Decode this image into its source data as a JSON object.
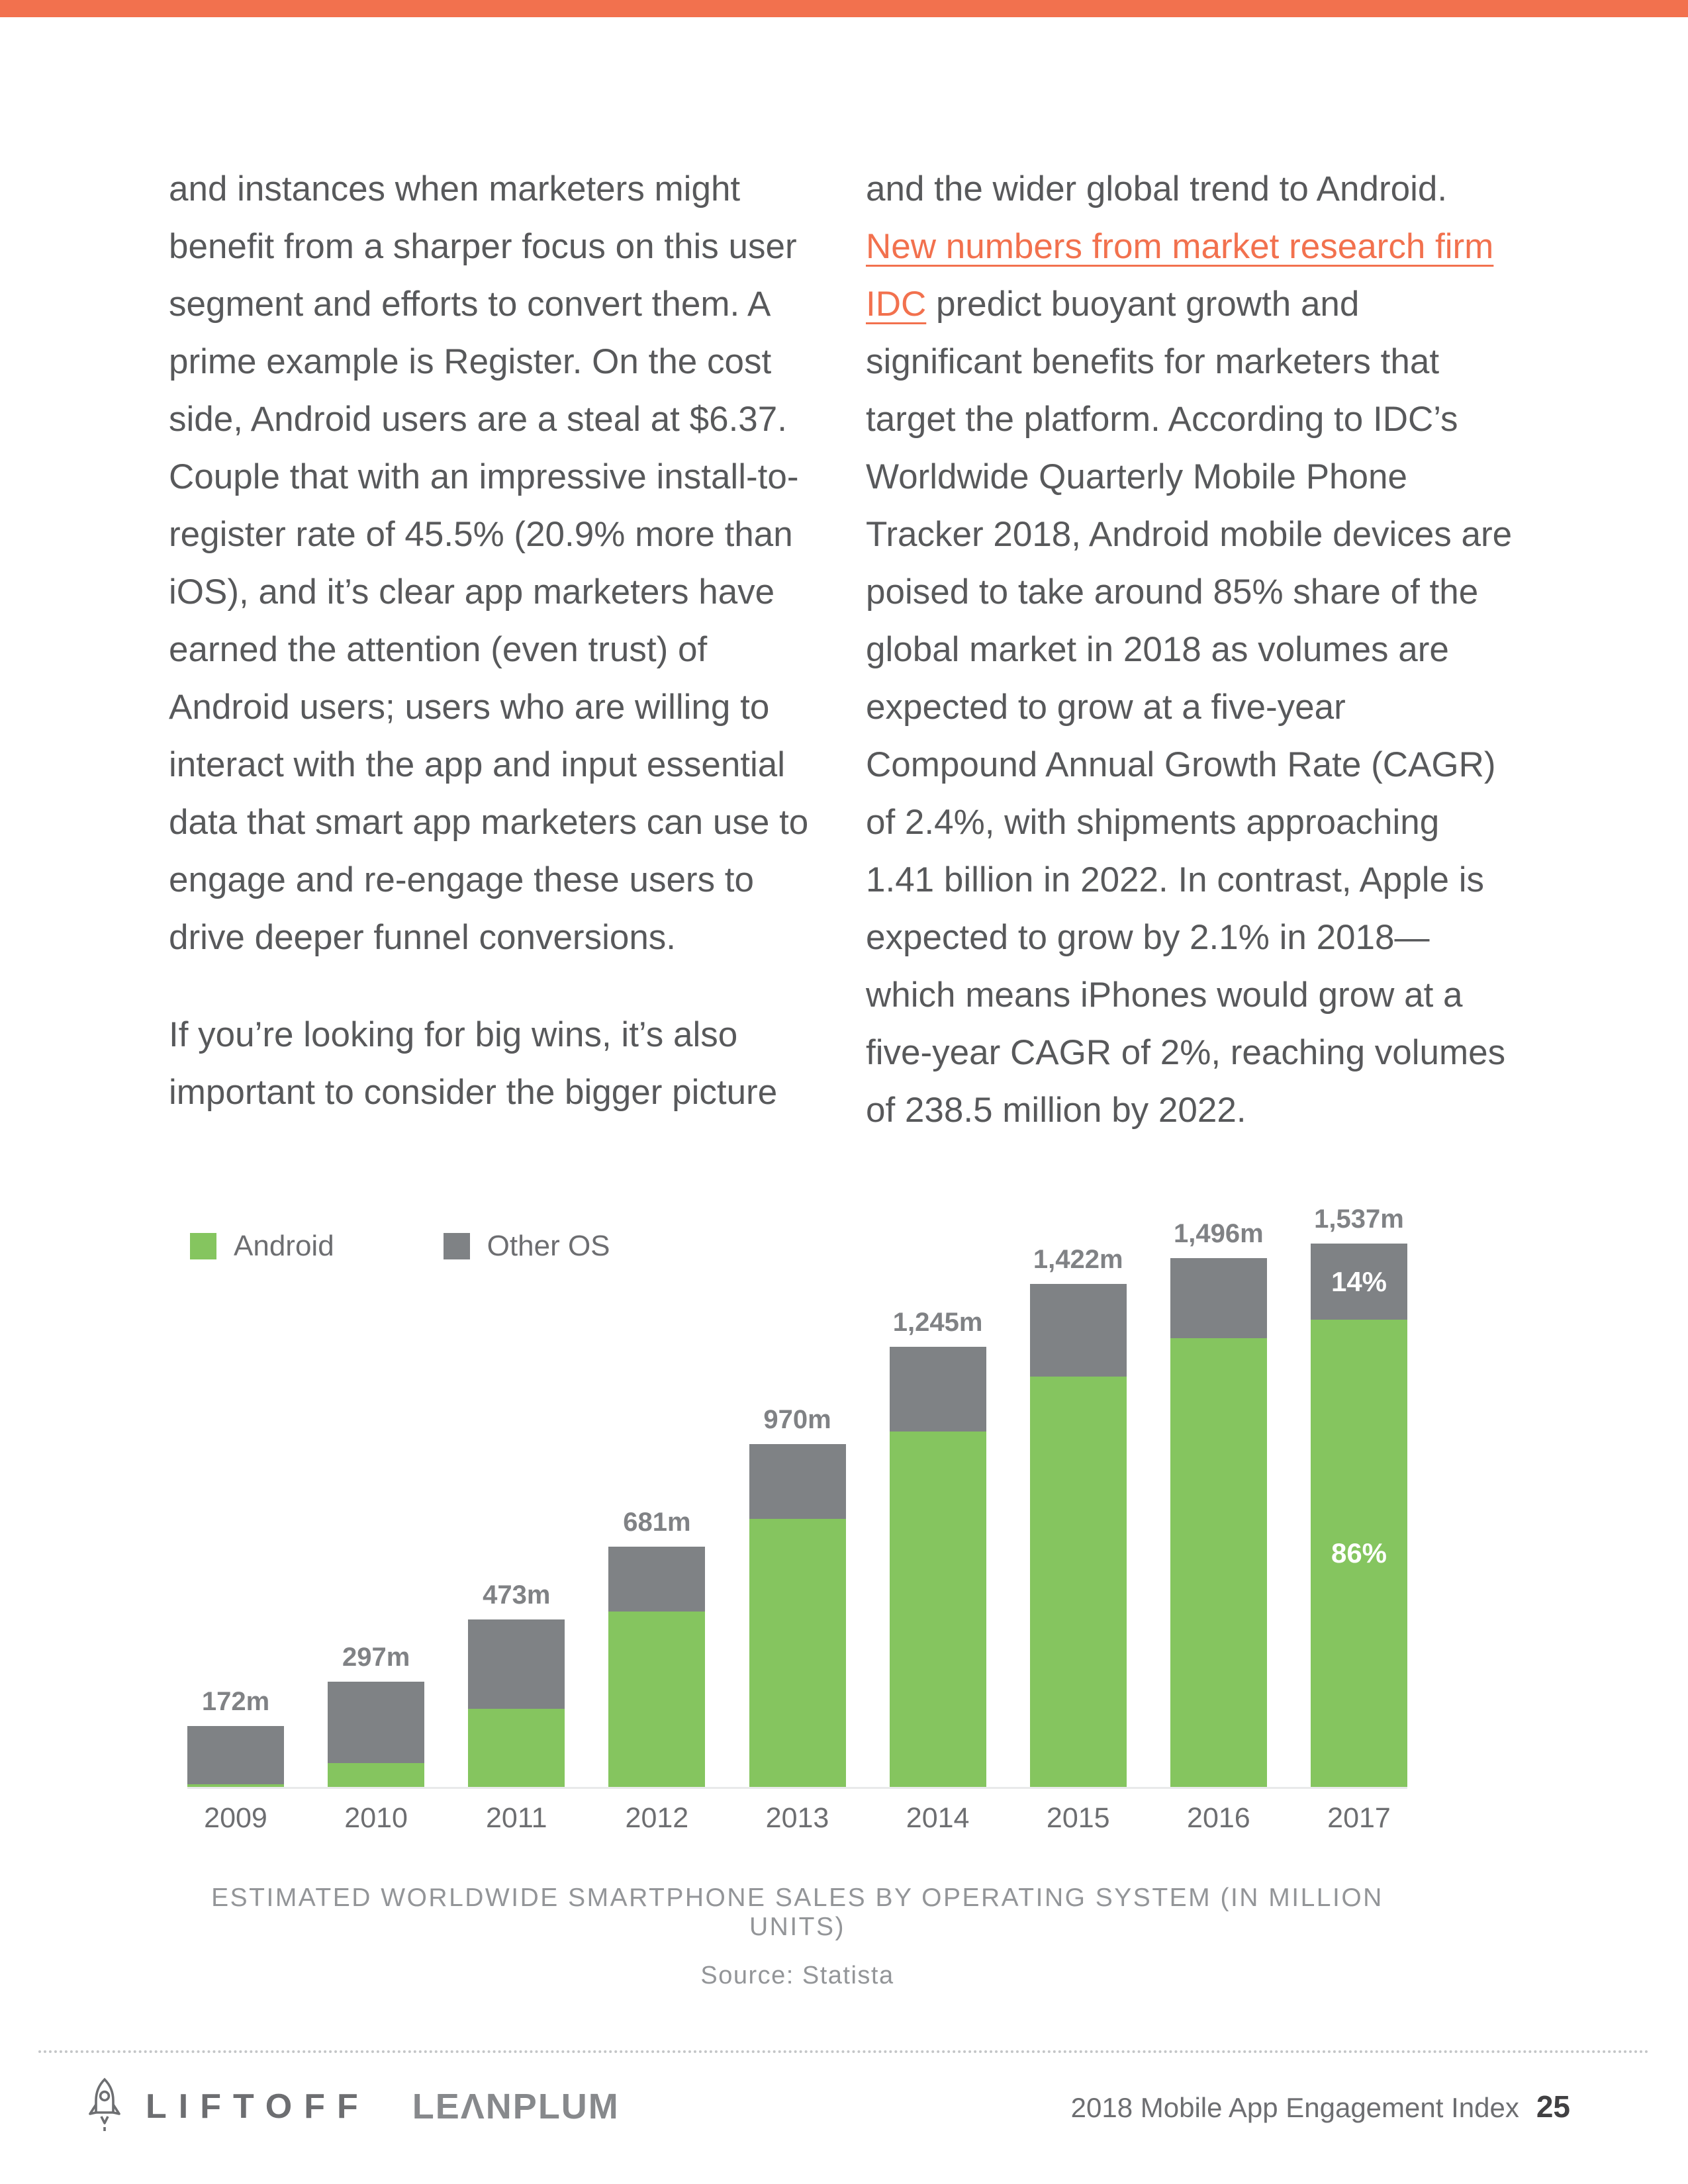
{
  "page": {
    "accent_color": "#F2714E",
    "text_color": "#58595B"
  },
  "article": {
    "left_column": {
      "paragraph1": "and instances when marketers might benefit from a sharper focus on this user segment and efforts to convert them. A prime example is Register. On the cost side, Android users are a steal at $6.37. Couple that with an impressive install-to-register rate of 45.5% (20.9% more than iOS), and it’s clear app marketers have earned the attention (even trust) of Android users; users who are willing to interact with the app and input essential data that smart app marketers can use to engage and re-engage these users to drive deeper funnel conversions.",
      "paragraph2": "If you’re looking for big wins, it’s also important to consider the bigger picture"
    },
    "right_column": {
      "pre_link": "and the wider global trend to Android. ",
      "link_text": "New numbers from market research firm IDC",
      "post_link": " predict buoyant growth and significant benefits for marketers that target the platform. According to IDC’s Worldwide Quarterly Mobile Phone Tracker 2018, Android mobile devices are poised to take around 85% share of the global market in 2018 as volumes are expected to grow at a five-year Compound Annual Growth Rate (CAGR) of 2.4%, with shipments approaching 1.41 billion in 2022. In contrast, Apple is expected to grow by 2.1% in 2018—which means iPhones would grow at a five-year CAGR of 2%, reaching volumes of 238.5 million by 2022."
    }
  },
  "chart_data": {
    "type": "bar",
    "stacked": true,
    "title": "ESTIMATED WORLDWIDE SMARTPHONE SALES BY OPERATING SYSTEM (IN MILLION UNITS)",
    "source": "Source: Statista",
    "categories": [
      "2009",
      "2010",
      "2011",
      "2012",
      "2013",
      "2014",
      "2015",
      "2016",
      "2017"
    ],
    "totals_labels": [
      "172m",
      "297m",
      "473m",
      "681m",
      "970m",
      "1,245m",
      "1,422m",
      "1,496m",
      "1,537m"
    ],
    "totals": [
      172,
      297,
      473,
      681,
      970,
      1245,
      1422,
      1496,
      1537
    ],
    "series": [
      {
        "name": "Android",
        "color": "#85C55F",
        "values": [
          7,
          67,
          220,
          497,
          759,
          1005,
          1160,
          1269,
          1322
        ]
      },
      {
        "name": "Other OS",
        "color": "#7F8285",
        "values": [
          165,
          230,
          253,
          184,
          211,
          240,
          262,
          227,
          215
        ]
      }
    ],
    "annotations": [
      {
        "bar": "2017",
        "series": "Other OS",
        "label": "14%"
      },
      {
        "bar": "2017",
        "series": "Android",
        "label": "86%"
      }
    ],
    "legend_position": "top-left",
    "ylim": [
      0,
      1600
    ],
    "grid": false
  },
  "footer": {
    "liftoff": "LIFTOFF",
    "leanplum": "LEΛNPLUM",
    "right_text": "2018 Mobile App Engagement Index",
    "page_number": "25"
  }
}
